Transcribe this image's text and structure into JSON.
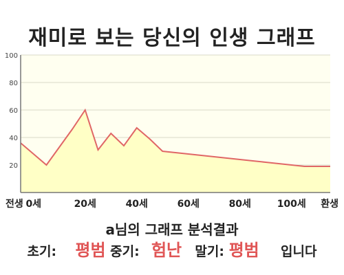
{
  "title": "재미로 보는 당신의 인생 그래프",
  "chart_data": {
    "type": "area",
    "ylim": [
      0,
      100
    ],
    "yticks": [
      20,
      40,
      60,
      80,
      100
    ],
    "x": [
      -5,
      0,
      5,
      10,
      15,
      20,
      25,
      30,
      35,
      40,
      45,
      50,
      55,
      60,
      65,
      70,
      75,
      80,
      85,
      90,
      95,
      100,
      105,
      110,
      115
    ],
    "values": [
      36,
      28,
      20,
      33,
      46,
      60,
      31,
      43,
      34,
      47,
      39,
      30,
      29,
      28,
      27,
      26,
      25,
      24,
      23,
      22,
      21,
      20,
      19,
      19,
      19
    ],
    "xticks": [
      {
        "x": -5,
        "label": "전생"
      },
      {
        "x": 0,
        "label": "0세"
      },
      {
        "x": 20,
        "label": "20세"
      },
      {
        "x": 40,
        "label": "40세"
      },
      {
        "x": 60,
        "label": "60세"
      },
      {
        "x": 80,
        "label": "80세"
      },
      {
        "x": 100,
        "label": "100세"
      },
      {
        "x": 115,
        "label": "환생"
      }
    ],
    "grid": true,
    "colors": {
      "line": "#e06666",
      "fill": "#ffffc6",
      "plot_bg": "#fffff0",
      "grid": "#d8d8c8",
      "axis": "#777777"
    }
  },
  "summary": {
    "line1": "a님의 그래프 분석결과",
    "early_label": "초기:",
    "early_value": "평범",
    "mid_label": "중기:",
    "mid_value": "험난",
    "late_label": "말기:",
    "late_value": "평범",
    "suffix": "입니다"
  }
}
